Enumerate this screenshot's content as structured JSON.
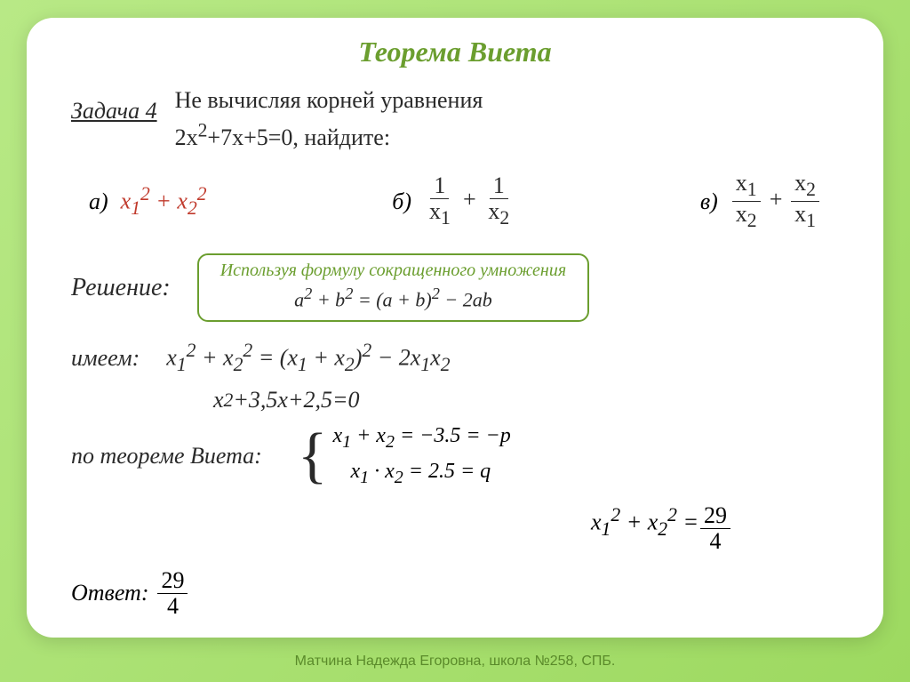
{
  "slide": {
    "title": "Теорема Виета",
    "background_gradient": [
      "#b8e986",
      "#9dd960"
    ],
    "card_bg": "#ffffff",
    "title_color": "#6b9e2f",
    "text_color": "#2a2a2a",
    "accent_red": "#c0392b",
    "task": {
      "label": "Задача 4",
      "line1": "Не вычисляя корней уравнения",
      "line2_html": "2x<sup>2</sup>+7x+5=0, найдите:"
    },
    "options": {
      "a": {
        "label": "а)",
        "expr_html": "x<sub>1</sub><sup>2</sup> + x<sub>2</sub><sup>2</sup>",
        "color": "#c0392b"
      },
      "b": {
        "label": "б)",
        "num1_html": "1",
        "den1_html": "x<sub>1</sub>",
        "num2_html": "1",
        "den2_html": "x<sub>2</sub>"
      },
      "v": {
        "label": "в)",
        "num1_html": "x<sub>1</sub>",
        "den1_html": "x<sub>2</sub>",
        "num2_html": "x<sub>2</sub>",
        "den2_html": "x<sub>1</sub>"
      }
    },
    "solution_label": "Решение:",
    "formula_box": {
      "title": "Используя формулу сокращенного умножения",
      "equation_html": "a<sup>2</sup> + b<sup>2</sup> = (a + b)<sup>2</sup> − 2ab",
      "border_color": "#6b9e2f"
    },
    "have_label": "имеем:",
    "have_expr_html": "x<sub>1</sub><sup>2</sup> + x<sub>2</sub><sup>2</sup> = (x<sub>1</sub> + x<sub>2</sub>)<sup>2</sup> − 2x<sub>1</sub>x<sub>2</sub>",
    "reduced_eq_html": "x<sup>2</sup>+3,5x+2,5=0",
    "vieta_label": "по теореме Виета:",
    "vieta_system": {
      "eq1_html": "x<sub>1</sub> + x<sub>2</sub> = −3.5 = −p",
      "eq2_html": "x<sub>1</sub> · x<sub>2</sub> = 2.5 = q"
    },
    "result_lhs_html": "x<sub>1</sub><sup>2</sup> + x<sub>2</sub><sup>2</sup> = ",
    "result_frac": {
      "num": "29",
      "den": "4"
    },
    "answer_label": "Ответ:",
    "answer_frac": {
      "num": "29",
      "den": "4"
    }
  },
  "footer": "Матчина Надежда Егоровна, школа №258, СПБ."
}
